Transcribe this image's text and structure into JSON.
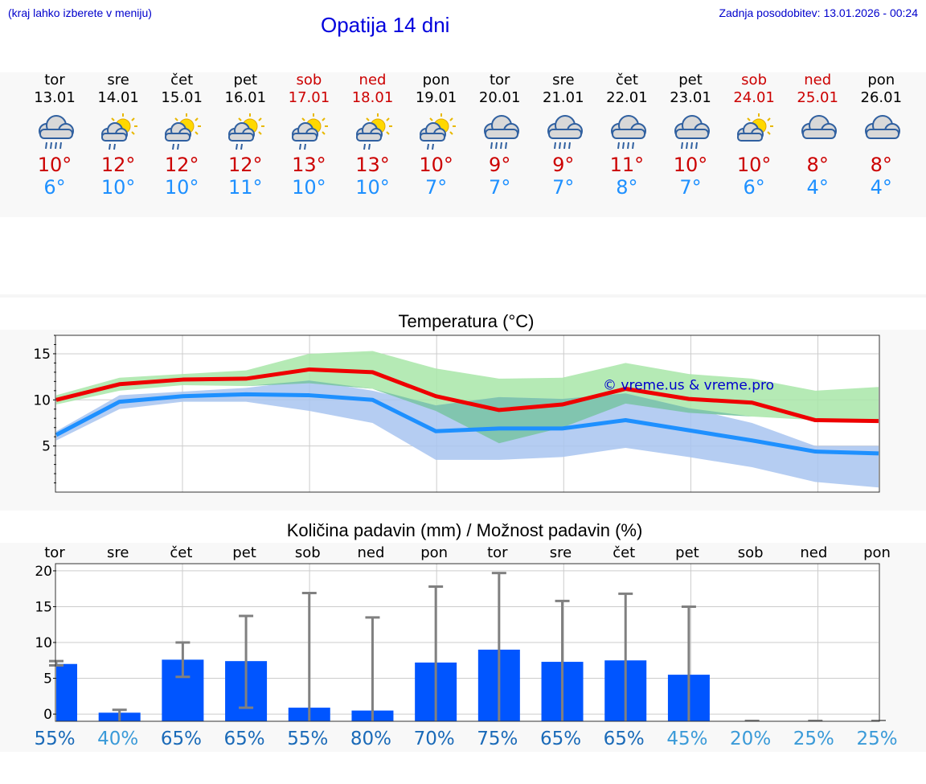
{
  "header": {
    "note_left": "(kraj lahko izberete v meniju)",
    "title": "Opatija 14 dni",
    "note_right": "Zadnja posodobitev: 13.01.2026 - 00:24"
  },
  "colors": {
    "accent": "#0000dd",
    "max": "#cc0000",
    "min": "#1e90ff",
    "bar": "#0055ff"
  },
  "days": [
    {
      "day": "tor",
      "date": "13.01",
      "weekend": false,
      "icon": "rain-cloud-icon",
      "tmax": "10°",
      "tmin": "6°"
    },
    {
      "day": "sre",
      "date": "14.01",
      "weekend": false,
      "icon": "sun-cloud-rain-icon",
      "tmax": "12°",
      "tmin": "10°"
    },
    {
      "day": "čet",
      "date": "15.01",
      "weekend": false,
      "icon": "sun-cloud-rain-icon",
      "tmax": "12°",
      "tmin": "10°"
    },
    {
      "day": "pet",
      "date": "16.01",
      "weekend": false,
      "icon": "sun-cloud-rain-icon",
      "tmax": "12°",
      "tmin": "11°"
    },
    {
      "day": "sob",
      "date": "17.01",
      "weekend": true,
      "icon": "sun-cloud-rain-icon",
      "tmax": "13°",
      "tmin": "10°"
    },
    {
      "day": "ned",
      "date": "18.01",
      "weekend": true,
      "icon": "sun-cloud-rain-icon",
      "tmax": "13°",
      "tmin": "10°"
    },
    {
      "day": "pon",
      "date": "19.01",
      "weekend": false,
      "icon": "sun-cloud-rain-icon",
      "tmax": "10°",
      "tmin": "7°"
    },
    {
      "day": "tor",
      "date": "20.01",
      "weekend": false,
      "icon": "rain-cloud-icon",
      "tmax": "9°",
      "tmin": "7°"
    },
    {
      "day": "sre",
      "date": "21.01",
      "weekend": false,
      "icon": "rain-cloud-icon",
      "tmax": "9°",
      "tmin": "7°"
    },
    {
      "day": "čet",
      "date": "22.01",
      "weekend": false,
      "icon": "rain-cloud-icon",
      "tmax": "11°",
      "tmin": "8°"
    },
    {
      "day": "pet",
      "date": "23.01",
      "weekend": false,
      "icon": "rain-cloud-icon",
      "tmax": "10°",
      "tmin": "7°"
    },
    {
      "day": "sob",
      "date": "24.01",
      "weekend": true,
      "icon": "sun-cloud-icon",
      "tmax": "10°",
      "tmin": "6°"
    },
    {
      "day": "ned",
      "date": "25.01",
      "weekend": true,
      "icon": "cloud-icon",
      "tmax": "8°",
      "tmin": "4°"
    },
    {
      "day": "pon",
      "date": "26.01",
      "weekend": false,
      "icon": "cloud-icon",
      "tmax": "8°",
      "tmin": "4°"
    }
  ],
  "chart_data": [
    {
      "type": "line",
      "title": "Temperatura (°C)",
      "watermark": "© vreme.us & vreme.pro",
      "x": [
        0,
        1,
        2,
        3,
        4,
        5,
        6,
        7,
        8,
        9,
        10,
        11,
        12,
        13
      ],
      "ylim": [
        0,
        17
      ],
      "yticks": [
        5,
        10,
        15
      ],
      "grid": true,
      "series": [
        {
          "name": "max",
          "color": "#ee0000",
          "values": [
            10,
            11.7,
            12.2,
            12.3,
            13.3,
            13,
            10.4,
            8.9,
            9.5,
            11.2,
            10.1,
            9.7,
            7.8,
            7.7
          ]
        },
        {
          "name": "min",
          "color": "#1e90ff",
          "values": [
            6.2,
            9.8,
            10.4,
            10.6,
            10.5,
            10,
            6.6,
            6.9,
            6.9,
            7.8,
            6.7,
            5.6,
            4.4,
            4.2
          ]
        }
      ],
      "bands": [
        {
          "name": "max-range",
          "color": "#a8e6a8",
          "low": [
            9.5,
            11,
            11.6,
            11.5,
            11.8,
            11.2,
            8.8,
            5.3,
            7,
            9.6,
            8.6,
            8.2,
            7.8,
            7.6
          ],
          "high": [
            10.5,
            12.4,
            12.8,
            13.2,
            15,
            15.3,
            13.4,
            12.3,
            12.4,
            14,
            12.8,
            12.3,
            11,
            11.4
          ]
        },
        {
          "name": "min-range",
          "color": "#a8c4f0",
          "low": [
            5.6,
            9,
            9.8,
            9.8,
            8.8,
            7.5,
            3.5,
            3.5,
            3.8,
            4.8,
            3.8,
            2.7,
            1.1,
            0.5
          ],
          "high": [
            6.6,
            10.5,
            10.9,
            11.3,
            12.1,
            11,
            9.4,
            10.3,
            10.1,
            10.7,
            9.1,
            7.5,
            5,
            5
          ]
        }
      ]
    },
    {
      "type": "bar",
      "title": "Količina padavin (mm) / Možnost padavin (%)",
      "categories": [
        "tor",
        "sre",
        "čet",
        "pet",
        "sob",
        "ned",
        "pon",
        "tor",
        "sre",
        "čet",
        "pet",
        "sob",
        "ned",
        "pon"
      ],
      "ylim": [
        -1,
        21
      ],
      "yticks": [
        0,
        5,
        10,
        15,
        20
      ],
      "values": [
        7,
        0.2,
        7.6,
        7.4,
        0.9,
        0.5,
        7.2,
        9,
        7.3,
        7.5,
        5.5,
        0,
        0,
        0
      ],
      "err_low": [
        6.8,
        0,
        5.2,
        0.9,
        0,
        0,
        0,
        0,
        0,
        0,
        0,
        0,
        0,
        0
      ],
      "err_high": [
        7.4,
        0.6,
        10,
        13.7,
        16.9,
        13.5,
        17.8,
        19.7,
        15.8,
        16.8,
        15,
        0,
        0,
        0
      ],
      "chance": [
        "55%",
        "40%",
        "65%",
        "65%",
        "55%",
        "80%",
        "70%",
        "75%",
        "65%",
        "65%",
        "45%",
        "20%",
        "25%",
        "25%"
      ]
    }
  ]
}
